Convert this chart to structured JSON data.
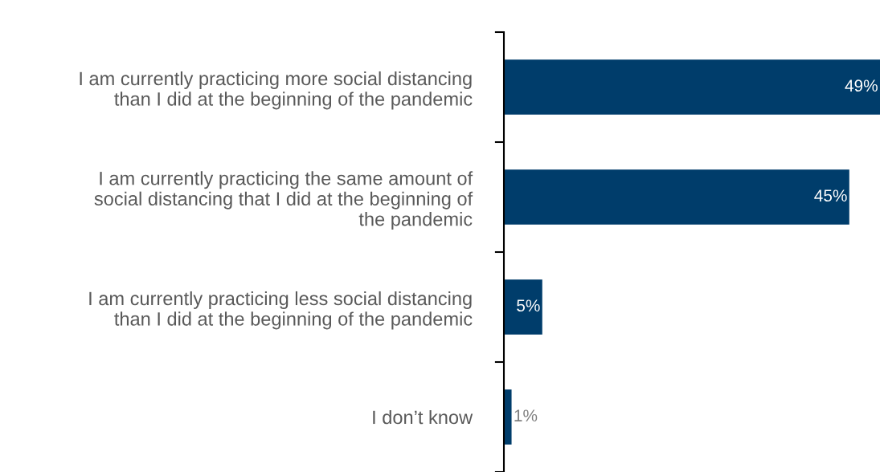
{
  "chart_data": {
    "type": "bar",
    "orientation": "horizontal",
    "categories": [
      "I am currently practicing more social distancing\nthan I did at the beginning of the pandemic",
      "I am currently practicing the same amount of\nsocial distancing that I did at the beginning of\nthe pandemic",
      "I am currently practicing less social distancing\nthan I did at the beginning of the pandemic",
      "I don’t know"
    ],
    "values": [
      49,
      45,
      5,
      1
    ],
    "value_labels": [
      "49%",
      "45%",
      "5%",
      "1%"
    ],
    "color": "#003d6b",
    "grid": false,
    "legend": false,
    "tick_labels": "y"
  }
}
